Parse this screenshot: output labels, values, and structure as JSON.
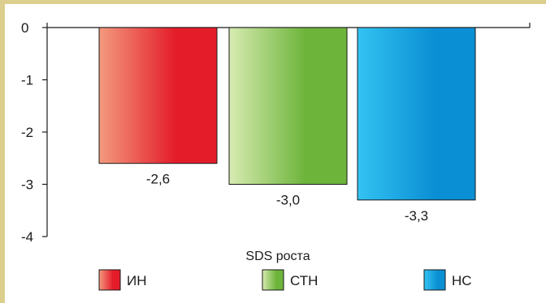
{
  "chart_data": {
    "type": "bar",
    "categories": [
      "ИН",
      "СТН",
      "НС"
    ],
    "values": [
      -2.6,
      -3.0,
      -3.3
    ],
    "data_labels": [
      "-2,6",
      "-3,0",
      "-3,3"
    ],
    "title": "",
    "xlabel": "SDS роста",
    "ylabel": "",
    "ylim": [
      -4,
      0
    ],
    "yticks": [
      0,
      -1,
      -2,
      -3,
      -4
    ],
    "ytick_labels": [
      "0",
      "-1",
      "-2",
      "-3",
      "-4"
    ],
    "grid": false,
    "legend_position": "bottom",
    "series_colors": [
      {
        "light": "#f39a7e",
        "dark": "#e41c2a"
      },
      {
        "light": "#d7ebb1",
        "dark": "#6db43b"
      },
      {
        "light": "#33c3f2",
        "dark": "#0b8fd4"
      }
    ],
    "frame_color": "#dccf8d"
  }
}
